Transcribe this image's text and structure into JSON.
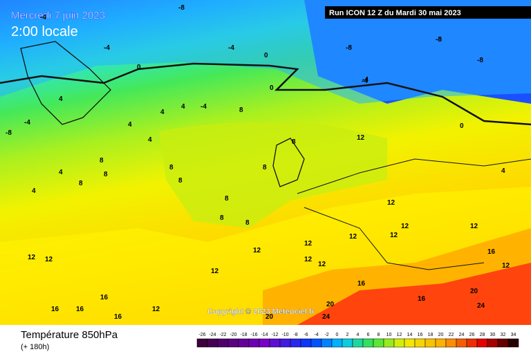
{
  "header": {
    "title": "Mercredi 7 juin 2023",
    "time": "2:00 locale",
    "run": "Run ICON 12 Z du Mardi 30 mai 2023"
  },
  "copyright": "Copyright © 2023 Meteociel.fr",
  "footer": {
    "title": "Température 850hPa",
    "lead": "(+ 180h)"
  },
  "scale": [
    "-26",
    "-24",
    "-22",
    "-20",
    "-18",
    "-16",
    "-14",
    "-12",
    "-10",
    "-8",
    "-6",
    "-4",
    "-2",
    "0",
    "2",
    "4",
    "6",
    "8",
    "10",
    "12",
    "14",
    "16",
    "18",
    "20",
    "22",
    "24",
    "26",
    "28",
    "30",
    "32",
    "34"
  ],
  "contour_labels": [
    "-4",
    "-8",
    "-4",
    "-4",
    "-8",
    "-8",
    "-8",
    "-8",
    "-4",
    "0",
    "0",
    "0",
    "-4",
    "-4",
    "0",
    "4",
    "4",
    "4",
    "4",
    "4",
    "4",
    "4",
    "8",
    "8",
    "8",
    "8",
    "8",
    "8",
    "8",
    "8",
    "8",
    "8",
    "12",
    "12",
    "12",
    "12",
    "12",
    "12",
    "12",
    "12",
    "12",
    "12",
    "12",
    "12",
    "16",
    "16",
    "16",
    "16",
    "16",
    "16",
    "16",
    "20",
    "20",
    "24",
    "24",
    "20",
    "-4",
    "-8",
    "4",
    "8",
    "12",
    "12",
    "12"
  ]
}
